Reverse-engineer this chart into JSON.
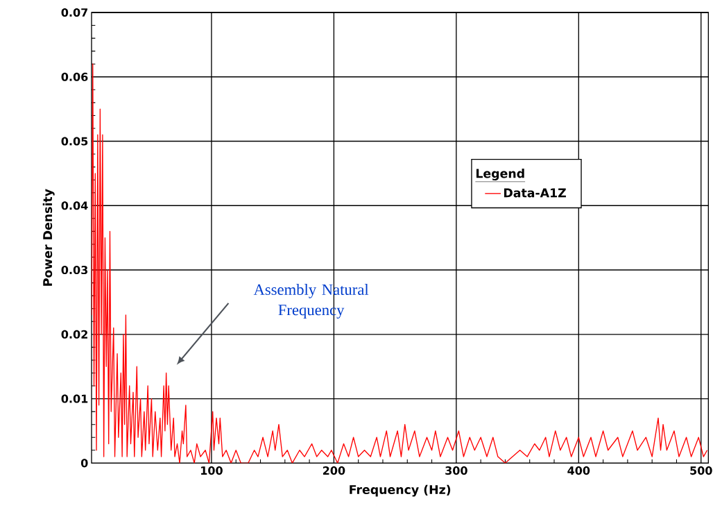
{
  "chart_data": {
    "type": "line",
    "xlabel": "Frequency (Hz)",
    "ylabel": "Power Density",
    "legend_title": "Legend",
    "xlim": [
      2,
      506
    ],
    "ylim": [
      0,
      0.07
    ],
    "xticks": [
      100,
      200,
      300,
      400,
      500
    ],
    "yticks": [
      0,
      0.01,
      0.02,
      0.03,
      0.04,
      0.05,
      0.06,
      0.07
    ],
    "grid": true,
    "legend": "center",
    "marker": "none",
    "line_style": "solid",
    "annotations": [
      "Assembly Natural Frequency"
    ],
    "series": [
      {
        "name": "Data-A1Z",
        "color": "#ff0000",
        "x": [
          2,
          3,
          4,
          5,
          6,
          7,
          8,
          9,
          10,
          11,
          12,
          13,
          14,
          15,
          16,
          17,
          18,
          20,
          21,
          23,
          24,
          26,
          27,
          28,
          29,
          30,
          31,
          33,
          34,
          36,
          37,
          39,
          40,
          42,
          43,
          45,
          46,
          48,
          49,
          51,
          52,
          54,
          56,
          58,
          59,
          61,
          62,
          63,
          64,
          65,
          67,
          69,
          70,
          72,
          74,
          76,
          77,
          79,
          80,
          83,
          86,
          88,
          91,
          95,
          98,
          101,
          102,
          104,
          106,
          107,
          109,
          112,
          116,
          120,
          124,
          130,
          135,
          138,
          142,
          146,
          150,
          152,
          155,
          158,
          162,
          166,
          172,
          176,
          182,
          186,
          190,
          195,
          198,
          203,
          208,
          212,
          216,
          220,
          225,
          230,
          235,
          238,
          243,
          246,
          252,
          255,
          258,
          261,
          266,
          270,
          276,
          280,
          283,
          287,
          293,
          297,
          302,
          306,
          311,
          315,
          320,
          325,
          330,
          334,
          340,
          346,
          352,
          358,
          364,
          368,
          373,
          376,
          381,
          385,
          390,
          394,
          400,
          404,
          410,
          414,
          420,
          424,
          432,
          436,
          444,
          448,
          455,
          460,
          465,
          467,
          469,
          472,
          478,
          482,
          488,
          492,
          498,
          502,
          505
        ],
        "values": [
          0.023,
          0.062,
          0.012,
          0.045,
          0.002,
          0.051,
          0.009,
          0.055,
          0.02,
          0.051,
          0.001,
          0.035,
          0.015,
          0.03,
          0.003,
          0.036,
          0.008,
          0.021,
          0.001,
          0.017,
          0.004,
          0.014,
          0.001,
          0.02,
          0.006,
          0.023,
          0.001,
          0.012,
          0.003,
          0.011,
          0.001,
          0.015,
          0.004,
          0.01,
          0.001,
          0.008,
          0.002,
          0.012,
          0.003,
          0.01,
          0.001,
          0.008,
          0.002,
          0.007,
          0.001,
          0.012,
          0.005,
          0.014,
          0.006,
          0.012,
          0.002,
          0.007,
          0.001,
          0.003,
          0.0,
          0.005,
          0.003,
          0.009,
          0.001,
          0.002,
          0.0,
          0.003,
          0.001,
          0.002,
          0.0,
          0.008,
          0.002,
          0.007,
          0.003,
          0.007,
          0.001,
          0.002,
          0.0,
          0.002,
          0.0,
          0.0,
          0.002,
          0.001,
          0.004,
          0.001,
          0.005,
          0.002,
          0.006,
          0.001,
          0.002,
          0.0,
          0.002,
          0.001,
          0.003,
          0.001,
          0.002,
          0.001,
          0.002,
          0.0,
          0.003,
          0.001,
          0.004,
          0.001,
          0.002,
          0.001,
          0.004,
          0.001,
          0.005,
          0.001,
          0.005,
          0.001,
          0.006,
          0.002,
          0.005,
          0.001,
          0.004,
          0.002,
          0.005,
          0.001,
          0.004,
          0.002,
          0.005,
          0.001,
          0.004,
          0.002,
          0.004,
          0.001,
          0.004,
          0.001,
          0.0,
          0.001,
          0.002,
          0.001,
          0.003,
          0.002,
          0.004,
          0.001,
          0.005,
          0.002,
          0.004,
          0.001,
          0.004,
          0.001,
          0.004,
          0.001,
          0.005,
          0.002,
          0.004,
          0.001,
          0.005,
          0.002,
          0.004,
          0.001,
          0.007,
          0.002,
          0.006,
          0.002,
          0.005,
          0.001,
          0.004,
          0.001,
          0.004,
          0.001,
          0.002
        ]
      }
    ]
  }
}
